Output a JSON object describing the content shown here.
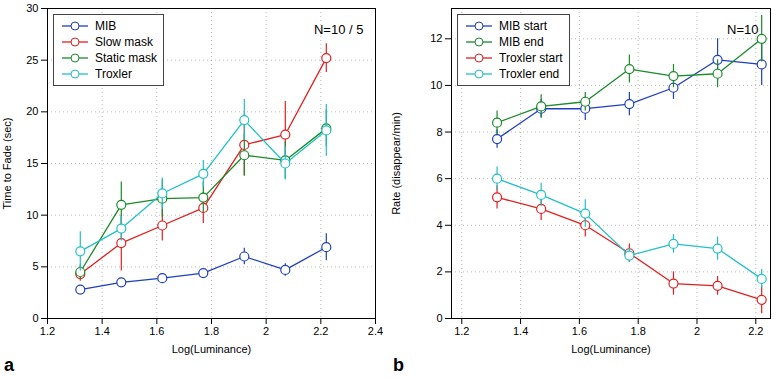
{
  "chart_data": [
    {
      "type": "line",
      "panel_label": "a",
      "x_label": "Log(Luminance)",
      "y_label": "Time to Fade (sec)",
      "annotations": [
        "N=10 / 5"
      ],
      "x": [
        1.32,
        1.47,
        1.62,
        1.77,
        1.92,
        2.07,
        2.22
      ],
      "xlim": [
        1.2,
        2.4
      ],
      "xticks": [
        1.2,
        1.4,
        1.6,
        1.8,
        2,
        2.2,
        2.4
      ],
      "ylim": [
        0,
        30
      ],
      "yticks": [
        0,
        5,
        10,
        15,
        20,
        25,
        30
      ],
      "grid": true,
      "legend": "top-left",
      "marker": "circle",
      "line_style": "solid",
      "series": [
        {
          "name": "MIB",
          "color": "#1f3fbf",
          "values": [
            2.8,
            3.5,
            3.9,
            4.4,
            6.0,
            4.7,
            6.9
          ],
          "errors": [
            0.4,
            0.4,
            0.4,
            0.4,
            0.8,
            0.6,
            1.3
          ]
        },
        {
          "name": "Slow mask",
          "color": "#e02020",
          "values": [
            4.3,
            7.3,
            9.0,
            10.7,
            16.8,
            17.8,
            25.2
          ],
          "errors": [
            0.7,
            2.7,
            1.5,
            1.5,
            3.0,
            3.2,
            1.4
          ]
        },
        {
          "name": "Static mask",
          "color": "#1a8a2a",
          "values": [
            4.5,
            11.0,
            11.6,
            11.7,
            15.8,
            15.3,
            18.4
          ],
          "errors": [
            0.7,
            2.2,
            1.8,
            1.5,
            2.0,
            1.8,
            1.8
          ]
        },
        {
          "name": "Troxler",
          "color": "#22c0c8",
          "values": [
            6.5,
            8.7,
            12.1,
            14.0,
            19.2,
            15.0,
            18.2
          ],
          "errors": [
            1.9,
            1.2,
            1.5,
            1.3,
            2.0,
            1.6,
            2.5
          ]
        }
      ]
    },
    {
      "type": "line",
      "panel_label": "b",
      "x_label": "Log(Luminance)",
      "y_label": "Rate (disappear/min)",
      "annotations": [
        "N=10"
      ],
      "x": [
        1.32,
        1.47,
        1.62,
        1.77,
        1.92,
        2.07,
        2.22
      ],
      "xlim": [
        1.165,
        2.25
      ],
      "xticks": [
        1.2,
        1.4,
        1.6,
        1.8,
        2,
        2.2
      ],
      "ylim": [
        0,
        13.3
      ],
      "yticks": [
        0,
        2,
        4,
        6,
        8,
        10,
        12
      ],
      "grid": true,
      "legend": "top-left",
      "marker": "circle",
      "line_style": "solid",
      "series": [
        {
          "name": "MIB start",
          "color": "#1f3fbf",
          "values": [
            7.7,
            9.0,
            9.0,
            9.2,
            9.9,
            11.1,
            10.9
          ],
          "errors": [
            0.4,
            0.4,
            0.5,
            0.5,
            0.5,
            0.9,
            0.9
          ]
        },
        {
          "name": "MIB end",
          "color": "#1a8a2a",
          "values": [
            8.4,
            9.1,
            9.3,
            10.7,
            10.4,
            10.5,
            12.0
          ],
          "errors": [
            0.5,
            0.5,
            0.4,
            0.6,
            0.5,
            0.6,
            1.0
          ]
        },
        {
          "name": "Troxler start",
          "color": "#e02020",
          "values": [
            5.2,
            4.7,
            4.0,
            2.8,
            1.5,
            1.4,
            0.8
          ],
          "errors": [
            0.5,
            0.5,
            0.5,
            0.4,
            0.5,
            0.4,
            0.6
          ]
        },
        {
          "name": "Troxler end",
          "color": "#22c0c8",
          "values": [
            6.0,
            5.3,
            4.5,
            2.7,
            3.2,
            3.0,
            1.7
          ],
          "errors": [
            0.5,
            0.5,
            0.6,
            0.3,
            0.4,
            0.5,
            0.4
          ]
        }
      ]
    }
  ]
}
